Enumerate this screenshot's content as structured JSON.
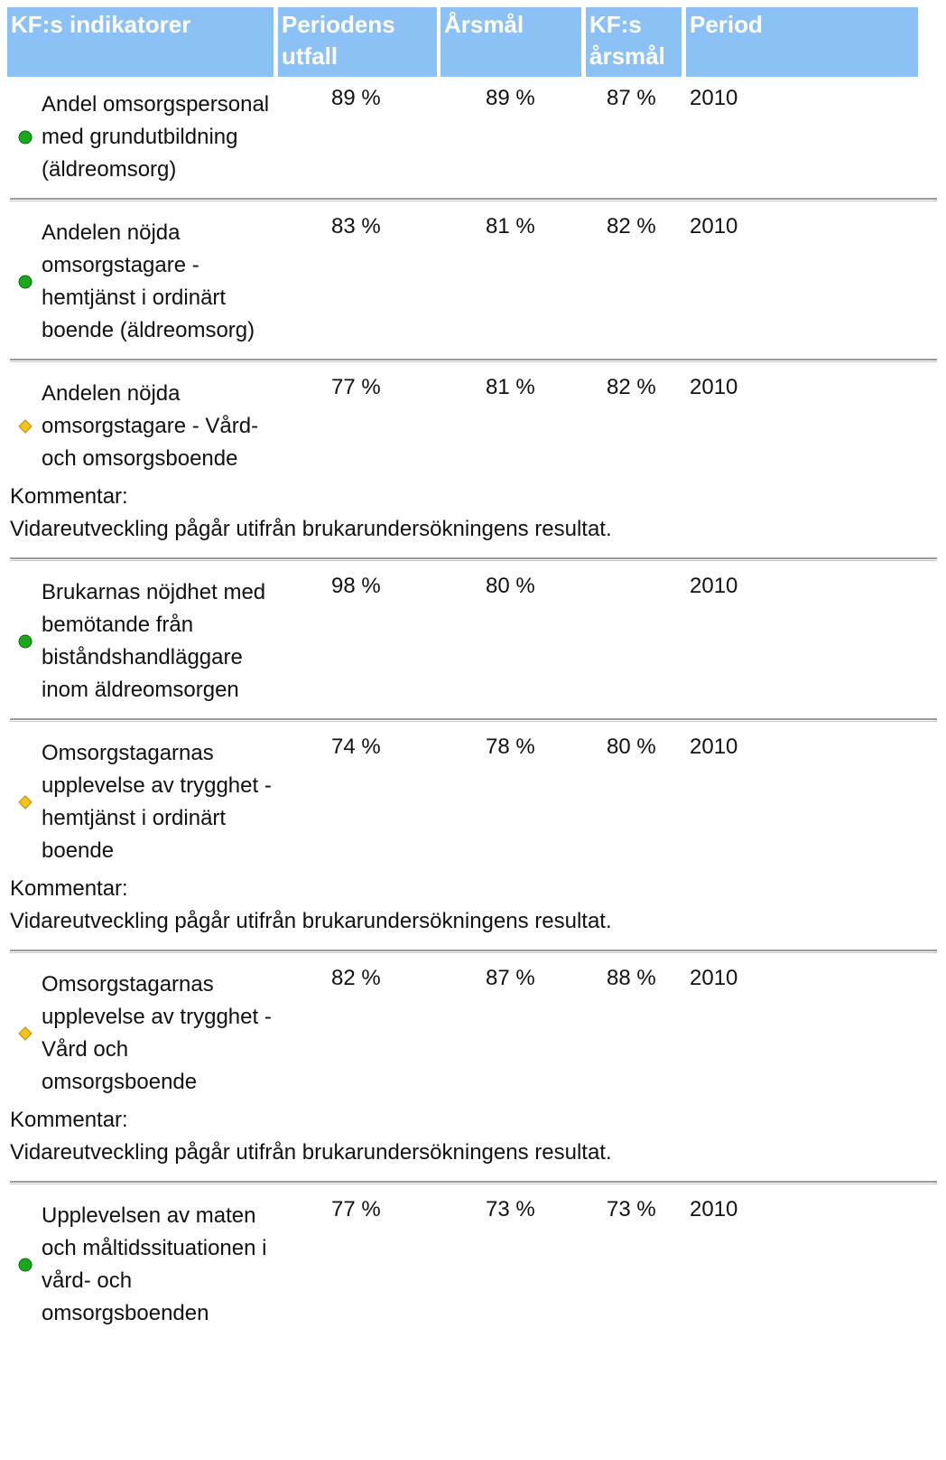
{
  "table": {
    "headers": [
      "KF:s indikatorer",
      "Periodens utfall",
      "Årsmål",
      "KF:s årsmål",
      "Period"
    ],
    "rows": [
      {
        "status": "green",
        "indicator": "Andel omsorgspersonal med grundutbildning (äldreomsorg)",
        "outcome": "89 %",
        "goal": "89 %",
        "kf_goal": "87 %",
        "period": "2010"
      },
      {
        "status": "green",
        "indicator": "Andelen nöjda omsorgstagare - hemtjänst i ordinärt boende (äldreomsorg)",
        "outcome": "83 %",
        "goal": "81 %",
        "kf_goal": "82 %",
        "period": "2010"
      },
      {
        "status": "yellow",
        "indicator": "Andelen nöjda omsorgstagare - Vård- och omsorgsboende",
        "outcome": "77 %",
        "goal": "81 %",
        "kf_goal": "82 %",
        "period": "2010",
        "comment_label": "Kommentar:",
        "comment": "Vidareutveckling pågår utifrån brukarundersökningens resultat."
      },
      {
        "status": "green",
        "indicator": "Brukarnas nöjdhet med bemötande från biståndshandläggare inom äldreomsorgen",
        "outcome": "98 %",
        "goal": "80 %",
        "kf_goal": null,
        "period": "2010"
      },
      {
        "status": "yellow",
        "indicator": "Omsorgstagarnas upplevelse av trygghet - hemtjänst i ordinärt boende",
        "outcome": "74 %",
        "goal": "78 %",
        "kf_goal": "80 %",
        "period": "2010",
        "comment_label": "Kommentar:",
        "comment": "Vidareutveckling pågår utifrån brukarundersökningens resultat."
      },
      {
        "status": "yellow",
        "indicator": "Omsorgstagarnas upplevelse av trygghet - Vård och omsorgsboende",
        "outcome": "82 %",
        "goal": "87 %",
        "kf_goal": "88 %",
        "period": "2010",
        "comment_label": "Kommentar:",
        "comment": "Vidareutveckling pågår utifrån brukarundersökningens resultat."
      },
      {
        "status": "green",
        "indicator": "Upplevelsen av maten och måltidssituationen i vård- och omsorgsboenden",
        "outcome": "77 %",
        "goal": "73 %",
        "kf_goal": "73 %",
        "period": "2010"
      }
    ]
  }
}
